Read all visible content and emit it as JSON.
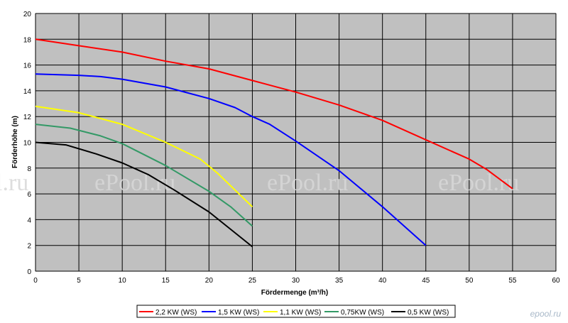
{
  "chart_data": {
    "type": "line",
    "xlabel": "Fördermenge (m³/h)",
    "ylabel": "Förderhöhe (m)",
    "xlim": [
      0,
      60
    ],
    "ylim": [
      0,
      20
    ],
    "x_ticks": [
      "0",
      "5",
      "10",
      "15",
      "20",
      "25",
      "30",
      "35",
      "40",
      "45",
      "50",
      "55",
      "60"
    ],
    "y_ticks": [
      "0",
      "2",
      "4",
      "6",
      "8",
      "10",
      "12",
      "14",
      "16",
      "18",
      "20"
    ],
    "grid": true,
    "legend_position": "bottom",
    "plot_background": "#c0c0c0",
    "series": [
      {
        "name": "2,2 KW (WS)",
        "color": "#ff0000",
        "points": [
          [
            0,
            18
          ],
          [
            5,
            17.5
          ],
          [
            10,
            17.0
          ],
          [
            15,
            16.3
          ],
          [
            20,
            15.7
          ],
          [
            25,
            14.8
          ],
          [
            30,
            13.9
          ],
          [
            35,
            12.9
          ],
          [
            40,
            11.7
          ],
          [
            45,
            10.2
          ],
          [
            50,
            8.7
          ],
          [
            52,
            7.9
          ],
          [
            55,
            6.4
          ]
        ]
      },
      {
        "name": "1,5 KW (WS)",
        "color": "#0000ff",
        "points": [
          [
            0,
            15.3
          ],
          [
            5,
            15.2
          ],
          [
            7.5,
            15.1
          ],
          [
            10,
            14.9
          ],
          [
            15,
            14.3
          ],
          [
            20,
            13.4
          ],
          [
            23,
            12.7
          ],
          [
            25,
            12.0
          ],
          [
            27,
            11.4
          ],
          [
            30,
            10.1
          ],
          [
            35,
            7.8
          ],
          [
            40,
            5.0
          ],
          [
            45,
            2.0
          ]
        ]
      },
      {
        "name": "1,1 KW (WS)",
        "color": "#ffff00",
        "points": [
          [
            0,
            12.8
          ],
          [
            5,
            12.3
          ],
          [
            10,
            11.4
          ],
          [
            15,
            10.0
          ],
          [
            19,
            8.7
          ],
          [
            21,
            7.6
          ],
          [
            23,
            6.3
          ],
          [
            25,
            5.0
          ]
        ]
      },
      {
        "name": "0,75KW (WS)",
        "color": "#339966",
        "points": [
          [
            0,
            11.4
          ],
          [
            4,
            11.1
          ],
          [
            7.5,
            10.5
          ],
          [
            10,
            9.9
          ],
          [
            15,
            8.2
          ],
          [
            20,
            6.2
          ],
          [
            22.5,
            5.0
          ],
          [
            25,
            3.5
          ]
        ]
      },
      {
        "name": "0,5 KW (WS)",
        "color": "#000000",
        "points": [
          [
            0,
            10.0
          ],
          [
            3.5,
            9.8
          ],
          [
            7,
            9.1
          ],
          [
            10,
            8.4
          ],
          [
            13,
            7.5
          ],
          [
            16,
            6.3
          ],
          [
            20,
            4.6
          ],
          [
            25,
            1.9
          ]
        ]
      }
    ]
  },
  "watermark": {
    "text": "ePool.ru",
    "clipped_text": "l.ru"
  },
  "logo": {
    "text": "epool.ru"
  }
}
